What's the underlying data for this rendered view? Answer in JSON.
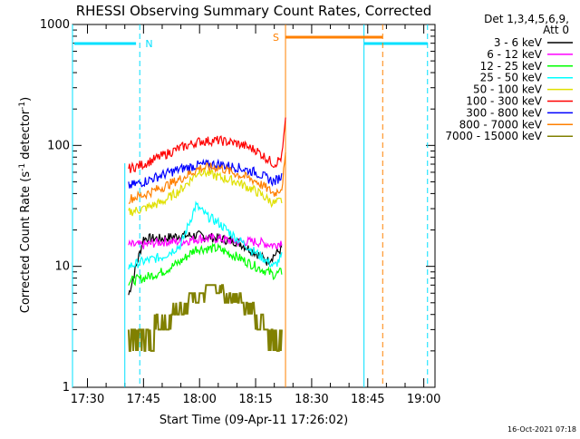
{
  "chart_data": {
    "type": "line",
    "title": "RHESSI Observing Summary Count Rates, Corrected",
    "xlabel": "Start Time (09-Apr-11 17:26:02)",
    "ylabel": "Corrected Count Rate (s⁻¹ detector⁻¹)",
    "ylabel_parts": {
      "main": "Corrected Count Rate (s",
      "exp1": "-1",
      "mid": " detector",
      "exp2": "-1",
      "end": ")"
    },
    "xlim": [
      "17:26",
      "19:03"
    ],
    "ylim": [
      1,
      1000
    ],
    "y_scale": "log",
    "x_ticks": [
      "17:30",
      "17:45",
      "18:00",
      "18:15",
      "18:30",
      "18:45",
      "19:00"
    ],
    "y_ticks": [
      "1",
      "10",
      "100",
      "1000"
    ],
    "grid": false,
    "legend_position": "top-right",
    "legend_header": [
      "Det 1,3,4,5,6,9,",
      "Att 0"
    ],
    "timestamp": "16-Oct-2021 07:18",
    "series": [
      {
        "name": "3 - 6 keV",
        "color": "#000000",
        "x": [
          "17:41",
          "17:44",
          "17:45",
          "17:50",
          "17:55",
          "18:00",
          "18:05",
          "18:10",
          "18:15",
          "18:18",
          "18:22"
        ],
        "y": [
          5.8,
          13,
          17,
          17,
          18,
          18,
          17,
          16,
          13,
          11,
          14
        ]
      },
      {
        "name": "6 - 12 keV",
        "color": "#ff00ff",
        "x": [
          "17:41",
          "17:45",
          "17:50",
          "17:55",
          "18:00",
          "18:05",
          "18:10",
          "18:15",
          "18:20",
          "18:22"
        ],
        "y": [
          15,
          15,
          16,
          16,
          17,
          17,
          16,
          16,
          15,
          16
        ]
      },
      {
        "name": "12 - 25 keV",
        "color": "#00ff00",
        "x": [
          "17:41",
          "17:45",
          "17:50",
          "17:55",
          "17:59",
          "18:05",
          "18:10",
          "18:15",
          "18:20",
          "18:22"
        ],
        "y": [
          7.5,
          8,
          9,
          11,
          14,
          14,
          12,
          10,
          8.5,
          9
        ]
      },
      {
        "name": "25 - 50 keV",
        "color": "#00ffff",
        "x": [
          "17:41",
          "17:45",
          "17:50",
          "17:55",
          "17:59",
          "18:02",
          "18:05",
          "18:10",
          "18:15",
          "18:20",
          "18:22"
        ],
        "y": [
          10,
          11,
          12,
          15,
          32,
          26,
          23,
          17,
          13,
          10,
          12
        ]
      },
      {
        "name": "50 - 100 keV",
        "color": "#e0e000",
        "x": [
          "17:41",
          "17:45",
          "17:50",
          "17:55",
          "18:00",
          "18:05",
          "18:10",
          "18:15",
          "18:20",
          "18:22"
        ],
        "y": [
          28,
          30,
          34,
          43,
          62,
          55,
          50,
          42,
          33,
          35
        ]
      },
      {
        "name": "100 - 300 keV",
        "color": "#ff0000",
        "x": [
          "17:41",
          "17:45",
          "17:50",
          "17:55",
          "18:00",
          "18:05",
          "18:10",
          "18:15",
          "18:20",
          "18:22",
          "18:23"
        ],
        "y": [
          64,
          70,
          82,
          96,
          108,
          110,
          104,
          92,
          70,
          80,
          160
        ]
      },
      {
        "name": "300 - 800 keV",
        "color": "#0000ff",
        "x": [
          "17:41",
          "17:45",
          "17:50",
          "17:55",
          "18:00",
          "18:05",
          "18:10",
          "18:15",
          "18:20",
          "18:22"
        ],
        "y": [
          46,
          50,
          57,
          64,
          69,
          70,
          66,
          60,
          50,
          56
        ]
      },
      {
        "name": "800 - 7000 keV",
        "color": "#ff8000",
        "x": [
          "17:41",
          "17:45",
          "17:50",
          "17:55",
          "18:00",
          "18:05",
          "18:10",
          "18:15",
          "18:20",
          "18:22",
          "18:23"
        ],
        "y": [
          36,
          39,
          45,
          53,
          65,
          66,
          58,
          51,
          40,
          45,
          80
        ]
      },
      {
        "name": "7000 - 15000 keV",
        "color": "#808000",
        "x": [
          "17:41",
          "17:44",
          "17:47",
          "17:50",
          "17:53",
          "17:56",
          "17:59",
          "18:02",
          "18:05",
          "18:08",
          "18:11",
          "18:14",
          "18:17",
          "18:20",
          "18:22"
        ],
        "y": [
          1.5,
          1.6,
          2.4,
          2.8,
          3.6,
          4.2,
          5.2,
          5.6,
          5.8,
          5.2,
          4.6,
          3.8,
          2.8,
          2,
          2.5
        ]
      }
    ],
    "markers": {
      "cyan_bars_labels": [
        "N"
      ],
      "orange_bar_label": "S"
    }
  }
}
